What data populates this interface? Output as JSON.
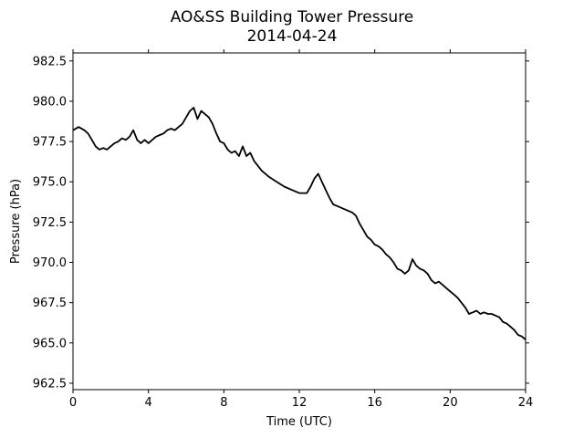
{
  "chart_data": {
    "type": "line",
    "title": "AO&SS Building Tower Pressure",
    "subtitle": "2014-04-24",
    "xlabel": "Time (UTC)",
    "ylabel": "Pressure (hPa)",
    "xlim": [
      0,
      24
    ],
    "ylim": [
      962.1,
      983.0
    ],
    "xticks": [
      0,
      4,
      8,
      12,
      16,
      20,
      24
    ],
    "yticks": [
      962.5,
      965.0,
      967.5,
      970.0,
      972.5,
      975.0,
      977.5,
      980.0,
      982.5
    ],
    "ytick_labels": [
      "962.5",
      "965.0",
      "967.5",
      "970.0",
      "972.5",
      "975.0",
      "977.5",
      "980.0",
      "982.5"
    ],
    "grid": false,
    "series": [
      {
        "color": "#000000",
        "x": [
          0.0,
          0.3,
          0.6,
          0.8,
          1.0,
          1.2,
          1.4,
          1.6,
          1.8,
          2.0,
          2.2,
          2.4,
          2.6,
          2.8,
          3.0,
          3.2,
          3.4,
          3.6,
          3.8,
          4.0,
          4.2,
          4.4,
          4.6,
          4.8,
          5.0,
          5.2,
          5.4,
          5.6,
          5.8,
          6.0,
          6.2,
          6.4,
          6.6,
          6.8,
          7.0,
          7.2,
          7.4,
          7.6,
          7.8,
          8.0,
          8.2,
          8.4,
          8.6,
          8.8,
          9.0,
          9.2,
          9.4,
          9.6,
          9.8,
          10.0,
          10.4,
          10.8,
          11.2,
          11.6,
          12.0,
          12.4,
          12.6,
          12.8,
          13.0,
          13.2,
          13.4,
          13.6,
          13.8,
          14.0,
          14.4,
          14.8,
          15.0,
          15.2,
          15.4,
          15.6,
          15.8,
          16.0,
          16.2,
          16.4,
          16.6,
          16.8,
          17.0,
          17.2,
          17.4,
          17.6,
          17.8,
          18.0,
          18.2,
          18.4,
          18.6,
          18.8,
          19.0,
          19.2,
          19.4,
          19.6,
          19.8,
          20.0,
          20.2,
          20.4,
          20.6,
          20.8,
          21.0,
          21.2,
          21.4,
          21.6,
          21.8,
          22.0,
          22.2,
          22.4,
          22.6,
          22.8,
          23.0,
          23.2,
          23.4,
          23.6,
          23.8,
          24.0
        ],
        "y": [
          978.2,
          978.4,
          978.2,
          978.0,
          977.6,
          977.2,
          977.0,
          977.1,
          977.0,
          977.2,
          977.4,
          977.5,
          977.7,
          977.6,
          977.8,
          978.2,
          977.6,
          977.4,
          977.6,
          977.4,
          977.6,
          977.8,
          977.9,
          978.0,
          978.2,
          978.3,
          978.2,
          978.4,
          978.6,
          979.0,
          979.4,
          979.6,
          978.9,
          979.4,
          979.2,
          979.0,
          978.6,
          978.0,
          977.5,
          977.4,
          977.0,
          976.8,
          976.9,
          976.6,
          977.2,
          976.6,
          976.8,
          976.3,
          976.0,
          975.7,
          975.3,
          975.0,
          974.7,
          974.5,
          974.3,
          974.3,
          974.7,
          975.2,
          975.5,
          975.0,
          974.5,
          974.0,
          973.6,
          973.5,
          973.3,
          973.1,
          972.9,
          972.4,
          972.0,
          971.6,
          971.4,
          971.1,
          971.0,
          970.8,
          970.5,
          970.3,
          970.0,
          969.6,
          969.5,
          969.3,
          969.5,
          970.2,
          969.8,
          969.6,
          969.5,
          969.3,
          968.9,
          968.7,
          968.8,
          968.6,
          968.4,
          968.2,
          968.0,
          967.8,
          967.5,
          967.2,
          966.8,
          966.9,
          967.0,
          966.8,
          966.9,
          966.8,
          966.8,
          966.7,
          966.6,
          966.3,
          966.2,
          966.0,
          965.8,
          965.5,
          965.4,
          965.2
        ]
      }
    ]
  }
}
